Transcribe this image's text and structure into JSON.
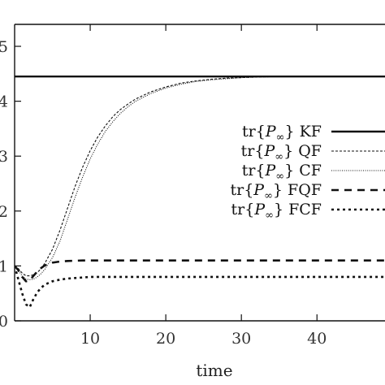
{
  "chart_data": {
    "type": "line",
    "title": "",
    "xlabel": "time",
    "ylabel": "",
    "xlim": [
      0,
      49
    ],
    "ylim": [
      0,
      5.4
    ],
    "xticks": [
      10,
      20,
      30,
      40
    ],
    "xtick_labels": [
      "10",
      "20",
      "30",
      "40"
    ],
    "yticks": [
      0,
      1,
      2,
      3,
      4,
      5
    ],
    "ytick_labels": [
      "0",
      "1",
      "2",
      "3",
      "4",
      "5"
    ],
    "grid": false,
    "legend_position": "right",
    "x": [
      0,
      0.5,
      1,
      1.5,
      2,
      2.5,
      3,
      3.5,
      4,
      5,
      6,
      7,
      8,
      9,
      10,
      11,
      12,
      13,
      14,
      15,
      16,
      18,
      20,
      22,
      24,
      26,
      28,
      30,
      32,
      35,
      40,
      45,
      49
    ],
    "series": [
      {
        "name": "tr{P∞} KF",
        "style": "solid-thick",
        "values": [
          4.45,
          4.45,
          4.45,
          4.45,
          4.45,
          4.45,
          4.45,
          4.45,
          4.45,
          4.45,
          4.45,
          4.45,
          4.45,
          4.45,
          4.45,
          4.45,
          4.45,
          4.45,
          4.45,
          4.45,
          4.45,
          4.45,
          4.45,
          4.45,
          4.45,
          4.45,
          4.45,
          4.45,
          4.45,
          4.45,
          4.45,
          4.45,
          4.45
        ]
      },
      {
        "name": "tr{P∞} QF",
        "style": "dashed-thin",
        "values": [
          1.0,
          0.95,
          0.87,
          0.82,
          0.82,
          0.84,
          0.88,
          0.95,
          1.05,
          1.3,
          1.65,
          2.05,
          2.45,
          2.8,
          3.1,
          3.35,
          3.55,
          3.72,
          3.85,
          3.95,
          4.04,
          4.17,
          4.26,
          4.33,
          4.37,
          4.4,
          4.42,
          4.43,
          4.44,
          4.45,
          4.45,
          4.45,
          4.45
        ]
      },
      {
        "name": "tr{P∞} CF",
        "style": "dotted-thin",
        "values": [
          1.0,
          0.92,
          0.82,
          0.76,
          0.75,
          0.76,
          0.8,
          0.86,
          0.94,
          1.15,
          1.45,
          1.85,
          2.25,
          2.62,
          2.95,
          3.22,
          3.45,
          3.63,
          3.78,
          3.9,
          4.0,
          4.14,
          4.24,
          4.31,
          4.36,
          4.39,
          4.41,
          4.43,
          4.44,
          4.45,
          4.45,
          4.45,
          4.45
        ]
      },
      {
        "name": "tr{P∞} FQF",
        "style": "dashed-thick",
        "values": [
          1.0,
          0.92,
          0.8,
          0.72,
          0.74,
          0.82,
          0.9,
          0.96,
          1.01,
          1.06,
          1.08,
          1.09,
          1.095,
          1.1,
          1.1,
          1.1,
          1.1,
          1.1,
          1.1,
          1.1,
          1.1,
          1.1,
          1.1,
          1.1,
          1.1,
          1.1,
          1.1,
          1.1,
          1.1,
          1.1,
          1.1,
          1.1,
          1.1
        ]
      },
      {
        "name": "tr{P∞} FCF",
        "style": "dotted-thick",
        "values": [
          1.0,
          0.75,
          0.5,
          0.3,
          0.25,
          0.4,
          0.52,
          0.6,
          0.66,
          0.72,
          0.75,
          0.77,
          0.78,
          0.79,
          0.8,
          0.8,
          0.8,
          0.8,
          0.8,
          0.8,
          0.8,
          0.8,
          0.8,
          0.8,
          0.8,
          0.8,
          0.8,
          0.8,
          0.8,
          0.8,
          0.8,
          0.8,
          0.8
        ]
      }
    ],
    "legend_entries": [
      {
        "prefix": "tr",
        "symbol": "P",
        "subscript": "∞",
        "suffix": "KF"
      },
      {
        "prefix": "tr",
        "symbol": "P",
        "subscript": "∞",
        "suffix": "QF"
      },
      {
        "prefix": "tr",
        "symbol": "P",
        "subscript": "∞",
        "suffix": "CF"
      },
      {
        "prefix": "tr",
        "symbol": "P",
        "subscript": "∞",
        "suffix": "FQF"
      },
      {
        "prefix": "tr",
        "symbol": "P",
        "subscript": "∞",
        "suffix": "FCF"
      }
    ]
  }
}
